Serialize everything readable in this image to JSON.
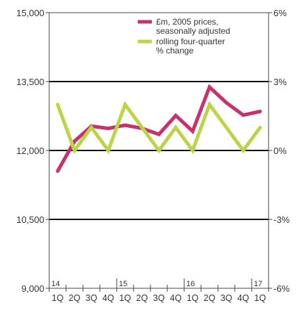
{
  "chart_data": {
    "type": "line",
    "x": [
      "1Q",
      "2Q",
      "3Q",
      "4Q",
      "1Q",
      "2Q",
      "3Q",
      "4Q",
      "1Q",
      "2Q",
      "3Q",
      "4Q",
      "1Q"
    ],
    "year_labels": [
      {
        "label": "14",
        "index": 0
      },
      {
        "label": "15",
        "index": 4
      },
      {
        "label": "16",
        "index": 8
      },
      {
        "label": "17",
        "index": 12
      }
    ],
    "left_axis": {
      "ylim": [
        9000,
        15000
      ],
      "ticks": [
        9000,
        10500,
        12000,
        13500,
        15000
      ],
      "tick_labels": [
        "9,000",
        "10,500",
        "12,000",
        "13,500",
        "15,000"
      ]
    },
    "right_axis": {
      "ylim": [
        -6,
        6
      ],
      "ticks": [
        -6,
        -3,
        0,
        3,
        6
      ],
      "tick_labels": [
        "-6%",
        "-3%",
        "0%",
        "3%",
        "6%"
      ]
    },
    "series": [
      {
        "name": "£m, 2005 prices, seasonally adjusted",
        "axis": "left",
        "color": "#c8306e",
        "values": [
          11550,
          12200,
          12530,
          12480,
          12550,
          12480,
          12350,
          12760,
          12420,
          13380,
          13040,
          12770,
          12850
        ]
      },
      {
        "name": "rolling four-quarter % change",
        "axis": "right",
        "color": "#bcd548",
        "values": [
          2.0,
          0.0,
          1.0,
          0.0,
          2.0,
          1.0,
          0.0,
          1.0,
          0.0,
          2.0,
          1.0,
          0.0,
          1.0
        ]
      }
    ],
    "legend": {
      "position": "top-right",
      "entries": [
        {
          "lines": [
            "£m, 2005 prices,",
            "seasonally adjusted"
          ],
          "color": "#c8306e"
        },
        {
          "lines": [
            "rolling four-quarter",
            "% change"
          ],
          "color": "#bcd548"
        }
      ]
    },
    "grid": "major horizontal gridlines"
  }
}
